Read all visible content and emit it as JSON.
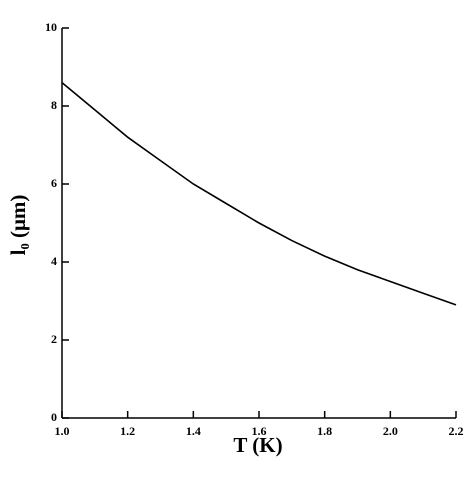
{
  "chart_data": {
    "type": "line",
    "x_label": "T (K)",
    "y_label": "l₀ (μm)",
    "x": [
      1.0,
      1.1,
      1.2,
      1.3,
      1.4,
      1.5,
      1.6,
      1.7,
      1.8,
      1.9,
      2.0,
      2.1,
      2.2
    ],
    "series": [
      {
        "color": "#000000",
        "values": [
          8.6,
          7.9,
          7.2,
          6.6,
          6.0,
          5.5,
          5.0,
          4.55,
          4.15,
          3.8,
          3.5,
          3.2,
          2.9
        ]
      }
    ],
    "xlim": [
      1.0,
      2.2
    ],
    "xticks": [
      {
        "value": 1.0,
        "label": "1.0"
      },
      1.2,
      1.4,
      1.6,
      1.8,
      {
        "value": 2.0,
        "label": "2.0"
      },
      2.2
    ],
    "ylim": [
      0,
      10
    ],
    "yticks": [
      0,
      2,
      4,
      6,
      8,
      10
    ]
  }
}
